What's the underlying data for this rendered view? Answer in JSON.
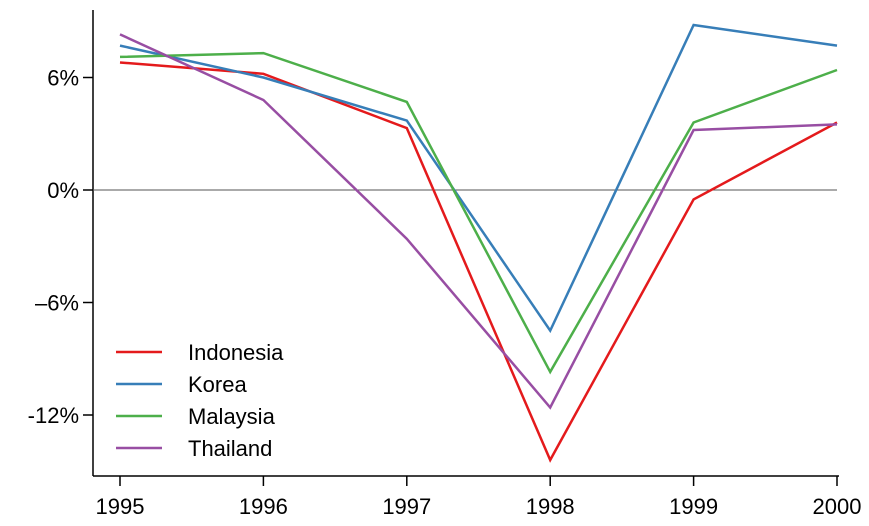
{
  "chart_data": {
    "type": "line",
    "title": "",
    "xlabel": "",
    "ylabel": "",
    "x": [
      1995,
      1996,
      1997,
      1998,
      1999,
      2000
    ],
    "x_tick_labels": [
      "1995",
      "1996",
      "1997",
      "1998",
      "1999",
      "2000"
    ],
    "y_ticks": [
      6,
      0,
      -6,
      -12
    ],
    "y_tick_labels": [
      "6%",
      "0%",
      "–6%",
      "-12%"
    ],
    "xlim": [
      1995,
      2000
    ],
    "ylim": [
      -15.5,
      9.5
    ],
    "grid": false,
    "reference_line_y": 0,
    "legend_position": "bottom-left",
    "series": [
      {
        "name": "Indonesia",
        "color": "#e41a1c",
        "values": [
          6.8,
          6.2,
          3.3,
          -14.4,
          -0.5,
          3.6
        ]
      },
      {
        "name": "Korea",
        "color": "#377eb8",
        "values": [
          7.7,
          6.0,
          3.7,
          -7.5,
          8.8,
          7.7
        ]
      },
      {
        "name": "Malaysia",
        "color": "#4daf4a",
        "values": [
          7.1,
          7.3,
          4.7,
          -9.7,
          3.6,
          6.4
        ]
      },
      {
        "name": "Thailand",
        "color": "#984ea3",
        "values": [
          8.3,
          4.8,
          -2.6,
          -11.6,
          3.2,
          3.5
        ]
      }
    ]
  }
}
